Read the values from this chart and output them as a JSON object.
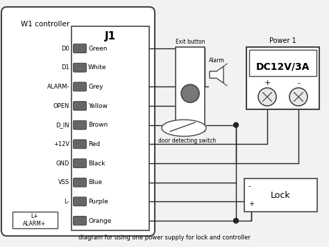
{
  "title": "W1 controller",
  "subtitle": "diagram for using one power supply for lock and controller",
  "j1_label": "J1",
  "pins": [
    "Green",
    "White",
    "Grey",
    "Yellow",
    "Brown",
    "Red",
    "Black",
    "Blue",
    "Purple",
    "Orange"
  ],
  "pin_labels": [
    "D0",
    "D1",
    "ALARM-",
    "OPEN",
    "D_IN",
    "+12V",
    "GND",
    "VSS",
    "L-",
    ""
  ],
  "special_label": "L+\nALARM+",
  "power_label": "Power 1",
  "power_text": "DC12V/3A",
  "exit_button_label": "Exit button",
  "alarm_label": "Alarm",
  "door_switch_label": "door detecting switch",
  "lock_label": "Lock",
  "bg_color": "#f2f2f2",
  "border_color": "#444444",
  "pin_color": "#666666",
  "wire_color": "#222222",
  "box_color": "#ffffff"
}
